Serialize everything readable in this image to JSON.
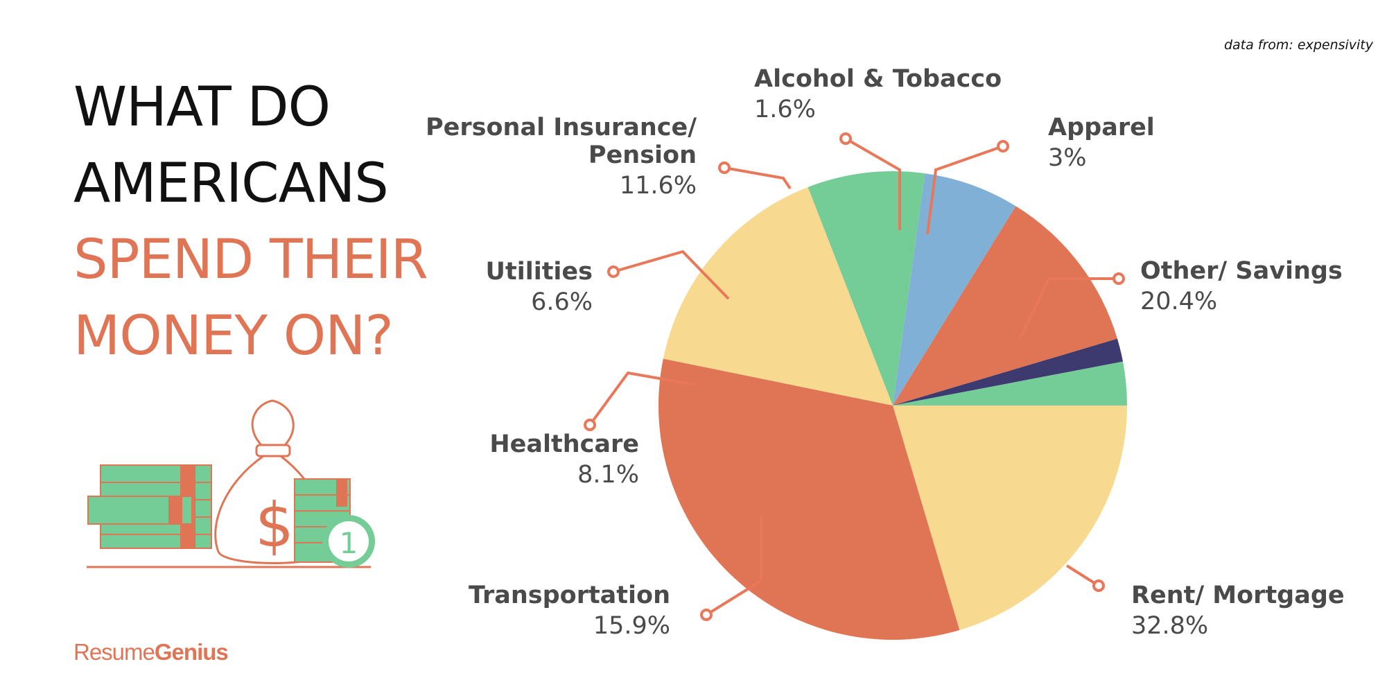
{
  "source_note": "data from: expensivity",
  "headline": {
    "line1": "WHAT DO",
    "line2": "AMERICANS",
    "line3": "SPEND THEIR",
    "line4": "MONEY ON?"
  },
  "brand": {
    "part1": "Resume",
    "part2": "Genius"
  },
  "illustration": {
    "icon": "money-bag-and-cash-icon",
    "coin_label": "1"
  },
  "colors": {
    "accent": "#e07556",
    "yellow": "#f7d98f",
    "green": "#74cd96",
    "blue": "#80b0d6",
    "navy": "#3c3a6e",
    "label_text": "#4a4a4a",
    "leader": "#e9775a"
  },
  "chart_data": {
    "type": "pie",
    "title": "",
    "unit": "%",
    "slices": [
      {
        "label": "Other/ Savings",
        "value": 20.4,
        "value_label": "20.4%",
        "color": "#f7d98f"
      },
      {
        "label": "Rent/ Mortgage",
        "value": 32.8,
        "value_label": "32.8%",
        "color": "#e07556"
      },
      {
        "label": "Transportation",
        "value": 15.9,
        "value_label": "15.9%",
        "color": "#f7d98f"
      },
      {
        "label": "Healthcare",
        "value": 8.1,
        "value_label": "8.1%",
        "color": "#74cd96"
      },
      {
        "label": "Utilities",
        "value": 6.6,
        "value_label": "6.6%",
        "color": "#80b0d6"
      },
      {
        "label": "Personal Insurance/ Pension",
        "label_lines": [
          "Personal Insurance/",
          "Pension"
        ],
        "value": 11.6,
        "value_label": "11.6%",
        "color": "#e07556"
      },
      {
        "label": "Alcohol & Tobacco",
        "value": 1.6,
        "value_label": "1.6%",
        "color": "#3c3a6e"
      },
      {
        "label": "Apparel",
        "value": 3,
        "value_label": "3%",
        "color": "#74cd96"
      }
    ]
  }
}
